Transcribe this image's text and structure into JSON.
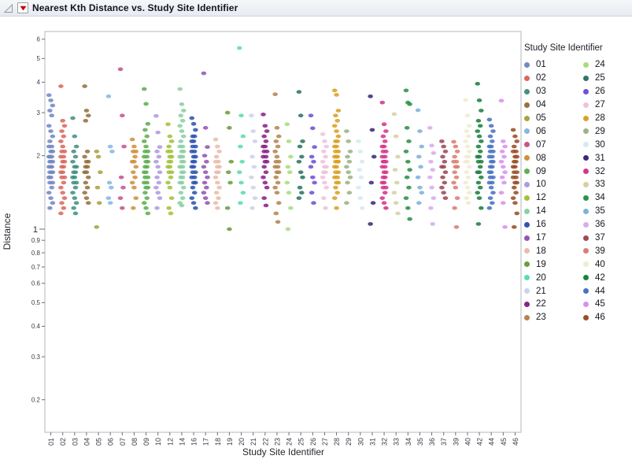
{
  "window": {
    "title": "Nearest Kth Distance vs. Study Site Identifier"
  },
  "icons": {
    "disclosure": "disclosure-triangle",
    "menu": "red-triangle-menu"
  },
  "chart_data": {
    "type": "scatter",
    "title": "Nearest Kth Distance vs. Study Site Identifier",
    "xlabel": "Study Site Identifier",
    "ylabel": "Distance",
    "y_scale": "log",
    "ylim": [
      0.15,
      6.4
    ],
    "grid": false,
    "legend_title": "Study Site Identifier",
    "legend_position": "right",
    "y_ticks": [
      6,
      5,
      4,
      3,
      2,
      1,
      0.9,
      0.8,
      0.7,
      0.6,
      0.5,
      0.4,
      0.3,
      0.2
    ],
    "y_tick_labels": [
      "6",
      "5",
      "4",
      "3",
      "2",
      "1",
      "0.9",
      "0.8",
      "0.7",
      "0.6",
      "0.5",
      "0.4",
      "0.3",
      "0.2"
    ],
    "y_major_tick": "1",
    "categories": [
      "01",
      "02",
      "03",
      "04",
      "05",
      "06",
      "07",
      "08",
      "09",
      "10",
      "12",
      "14",
      "16",
      "17",
      "18",
      "19",
      "20",
      "21",
      "22",
      "23",
      "24",
      "25",
      "26",
      "27",
      "28",
      "29",
      "30",
      "31",
      "32",
      "33",
      "34",
      "35",
      "36",
      "37",
      "39",
      "40",
      "42",
      "44",
      "45",
      "46"
    ],
    "series": [
      {
        "site": "01",
        "color": "#7289C4",
        "values": [
          3.54,
          3.37,
          3.21,
          3.06,
          2.92,
          2.65,
          2.52,
          2.4,
          2.29,
          2.18,
          2.18,
          2.08,
          2.08,
          1.98,
          1.98,
          1.98,
          1.89,
          1.89,
          1.89,
          1.8,
          1.8,
          1.8,
          1.71,
          1.71,
          1.71,
          1.63,
          1.63,
          1.55,
          1.55,
          1.48,
          1.41,
          1.34,
          1.28,
          1.22
        ]
      },
      {
        "site": "02",
        "color": "#D96A5F",
        "values": [
          3.85,
          2.78,
          2.65,
          2.52,
          2.4,
          2.29,
          2.18,
          2.08,
          2.08,
          1.98,
          1.98,
          1.89,
          1.89,
          1.8,
          1.8,
          1.71,
          1.71,
          1.63,
          1.63,
          1.55,
          1.48,
          1.41,
          1.34,
          1.28,
          1.22,
          1.16
        ]
      },
      {
        "site": "03",
        "color": "#43917F",
        "values": [
          2.85,
          2.4,
          2.18,
          2.08,
          1.98,
          1.89,
          1.8,
          1.8,
          1.71,
          1.71,
          1.63,
          1.63,
          1.55,
          1.55,
          1.48,
          1.41,
          1.34,
          1.28,
          1.22,
          1.16
        ]
      },
      {
        "site": "04",
        "color": "#96713F",
        "values": [
          3.85,
          3.06,
          2.92,
          2.78,
          2.08,
          1.98,
          1.89,
          1.89,
          1.8,
          1.8,
          1.71,
          1.71,
          1.63,
          1.55,
          1.48,
          1.41,
          1.34,
          1.28
        ]
      },
      {
        "site": "05",
        "color": "#A8A43F",
        "values": [
          2.08,
          1.98,
          1.71,
          1.48,
          1.28,
          1.02
        ]
      },
      {
        "site": "06",
        "color": "#87B8E0",
        "values": [
          3.5,
          2.18,
          2.08,
          1.55,
          1.48,
          1.34,
          1.28
        ]
      },
      {
        "site": "07",
        "color": "#C4578F",
        "values": [
          4.52,
          2.92,
          2.18,
          1.63,
          1.48,
          1.34,
          1.22
        ]
      },
      {
        "site": "08",
        "color": "#D0913D",
        "values": [
          2.33,
          2.18,
          2.08,
          2.08,
          1.98,
          1.89,
          1.89,
          1.8,
          1.71,
          1.63,
          1.55,
          1.48,
          1.34,
          1.22
        ]
      },
      {
        "site": "09",
        "color": "#60AE52",
        "values": [
          3.75,
          3.26,
          2.7,
          2.55,
          2.4,
          2.29,
          2.18,
          2.08,
          2.08,
          1.98,
          1.98,
          1.89,
          1.89,
          1.8,
          1.8,
          1.71,
          1.71,
          1.63,
          1.63,
          1.55,
          1.55,
          1.48,
          1.48,
          1.41,
          1.34,
          1.28,
          1.22,
          1.16
        ]
      },
      {
        "site": "10",
        "color": "#AD9CDE",
        "values": [
          2.91,
          2.49,
          2.17,
          2.08,
          1.98,
          1.89,
          1.8,
          1.71,
          1.63,
          1.55,
          1.48,
          1.41,
          1.34,
          1.22
        ]
      },
      {
        "site": "12",
        "color": "#A3C13B",
        "values": [
          2.69,
          2.4,
          2.29,
          2.18,
          2.08,
          2.08,
          1.98,
          1.98,
          1.89,
          1.89,
          1.8,
          1.8,
          1.71,
          1.71,
          1.63,
          1.55,
          1.48,
          1.34,
          1.22,
          1.16
        ]
      },
      {
        "site": "14",
        "color": "#8CCFA5",
        "values": [
          3.75,
          3.25,
          3.06,
          2.92,
          2.78,
          2.65,
          2.52,
          2.4,
          2.29,
          2.18,
          2.18,
          2.08,
          2.08,
          1.98,
          1.98,
          1.98,
          1.89,
          1.89,
          1.8,
          1.8,
          1.8,
          1.71,
          1.71,
          1.63,
          1.63,
          1.55,
          1.55,
          1.48,
          1.41,
          1.34,
          1.28,
          1.25
        ]
      },
      {
        "site": "16",
        "color": "#2F55B2",
        "values": [
          2.85,
          2.7,
          2.55,
          2.4,
          2.4,
          2.29,
          2.29,
          2.18,
          2.18,
          2.08,
          2.08,
          1.98,
          1.98,
          1.89,
          1.89,
          1.8,
          1.8,
          1.71,
          1.71,
          1.63,
          1.63,
          1.55,
          1.55,
          1.48,
          1.41,
          1.34,
          1.28,
          1.22
        ]
      },
      {
        "site": "17",
        "color": "#9457B0",
        "values": [
          4.35,
          2.6,
          2.17,
          2.0,
          1.89,
          1.8,
          1.71,
          1.63,
          1.55,
          1.48,
          1.41,
          1.34,
          1.28
        ]
      },
      {
        "site": "18",
        "color": "#EBBCAA",
        "values": [
          2.33,
          2.18,
          2.08,
          1.98,
          1.89,
          1.89,
          1.8,
          1.8,
          1.71,
          1.71,
          1.63,
          1.55,
          1.48,
          1.41,
          1.34,
          1.28,
          1.22
        ]
      },
      {
        "site": "19",
        "color": "#6B9E3E",
        "values": [
          3.0,
          2.6,
          1.89,
          1.71,
          1.55,
          1.22,
          1.0
        ]
      },
      {
        "site": "20",
        "color": "#5BDCAF",
        "values": [
          5.52,
          2.92,
          2.4,
          2.18,
          1.89,
          1.71,
          1.55,
          1.41,
          1.28
        ]
      },
      {
        "site": "21",
        "color": "#CDD1EA",
        "values": [
          2.92,
          2.52,
          2.29,
          1.98,
          1.8,
          1.63,
          1.48,
          1.34,
          1.22
        ]
      },
      {
        "site": "22",
        "color": "#8A2387",
        "values": [
          2.95,
          2.65,
          2.52,
          2.4,
          2.29,
          2.18,
          2.18,
          2.08,
          2.08,
          1.98,
          1.98,
          1.89,
          1.89,
          1.8,
          1.71,
          1.63,
          1.55,
          1.48,
          1.34,
          1.25
        ]
      },
      {
        "site": "23",
        "color": "#B5854F",
        "values": [
          3.57,
          2.6,
          2.4,
          2.29,
          2.18,
          2.08,
          1.98,
          1.89,
          1.89,
          1.8,
          1.8,
          1.71,
          1.71,
          1.63,
          1.55,
          1.48,
          1.41,
          1.28,
          1.16,
          1.07
        ]
      },
      {
        "site": "24",
        "color": "#A8DD7C",
        "values": [
          2.69,
          2.29,
          1.98,
          1.8,
          1.71,
          1.55,
          1.41,
          1.22,
          1.0
        ]
      },
      {
        "site": "25",
        "color": "#2F7467",
        "values": [
          3.65,
          2.92,
          2.29,
          2.18,
          1.98,
          1.89,
          1.71,
          1.63,
          1.48,
          1.41,
          1.34
        ]
      },
      {
        "site": "26",
        "color": "#6F51D6",
        "values": [
          2.92,
          2.59,
          2.17,
          1.98,
          1.89,
          1.8,
          1.63,
          1.55,
          1.41,
          1.28
        ]
      },
      {
        "site": "27",
        "color": "#EFC2DC",
        "values": [
          2.45,
          2.29,
          2.18,
          2.08,
          1.98,
          1.89,
          1.8,
          1.8,
          1.71,
          1.71,
          1.63,
          1.55,
          1.48,
          1.34,
          1.22
        ]
      },
      {
        "site": "28",
        "color": "#D9A126",
        "values": [
          3.7,
          3.55,
          3.06,
          2.92,
          2.78,
          2.65,
          2.52,
          2.4,
          2.29,
          2.29,
          2.18,
          2.18,
          2.08,
          2.08,
          1.98,
          1.98,
          1.98,
          1.89,
          1.89,
          1.89,
          1.8,
          1.8,
          1.71,
          1.71,
          1.63,
          1.63,
          1.55,
          1.55,
          1.48,
          1.41,
          1.34,
          1.22
        ]
      },
      {
        "site": "29",
        "color": "#9BB385",
        "values": [
          2.52,
          2.29,
          2.08,
          1.98,
          1.89,
          1.8,
          1.71,
          1.63,
          1.55,
          1.41,
          1.28
        ]
      },
      {
        "site": "30",
        "color": "#D2EAF3",
        "values": [
          2.29,
          2.08,
          1.89,
          1.75,
          1.63,
          1.48,
          1.34,
          1.22
        ]
      },
      {
        "site": "31",
        "color": "#3D2A7D",
        "values": [
          3.5,
          2.55,
          1.98,
          1.55,
          1.28,
          1.05
        ]
      },
      {
        "site": "32",
        "color": "#D63787",
        "values": [
          3.3,
          2.69,
          2.52,
          2.4,
          2.29,
          2.18,
          2.18,
          2.08,
          2.08,
          1.98,
          1.98,
          1.89,
          1.89,
          1.89,
          1.8,
          1.8,
          1.71,
          1.71,
          1.63,
          1.63,
          1.55,
          1.55,
          1.48,
          1.48,
          1.41,
          1.34,
          1.28,
          1.22
        ]
      },
      {
        "site": "33",
        "color": "#D6D0A2",
        "values": [
          2.96,
          2.4,
          1.98,
          1.75,
          1.55,
          1.41,
          1.28,
          1.16
        ]
      },
      {
        "site": "34",
        "color": "#2E9147",
        "values": [
          3.7,
          3.3,
          3.25,
          2.6,
          2.29,
          2.08,
          1.89,
          1.75,
          1.63,
          1.48,
          1.34,
          1.22,
          1.1
        ]
      },
      {
        "site": "35",
        "color": "#7FB2D9",
        "values": [
          3.07,
          2.52,
          2.18,
          1.98,
          1.8,
          1.63,
          1.48,
          1.41,
          1.28
        ]
      },
      {
        "site": "36",
        "color": "#D8ACEE",
        "values": [
          2.6,
          2.2,
          2.05,
          1.89,
          1.75,
          1.63,
          1.48,
          1.34,
          1.22,
          1.05
        ]
      },
      {
        "site": "37",
        "color": "#9C4A55",
        "values": [
          2.29,
          2.18,
          2.08,
          1.98,
          1.89,
          1.8,
          1.8,
          1.71,
          1.63,
          1.55,
          1.48,
          1.41,
          1.34
        ]
      },
      {
        "site": "39",
        "color": "#DB7E72",
        "values": [
          2.28,
          2.18,
          2.08,
          1.98,
          1.89,
          1.89,
          1.8,
          1.8,
          1.71,
          1.63,
          1.55,
          1.48,
          1.34,
          1.22,
          1.02
        ]
      },
      {
        "site": "40",
        "color": "#EFECCF",
        "values": [
          3.38,
          2.92,
          2.65,
          2.52,
          2.4,
          2.29,
          2.18,
          2.08,
          1.98,
          1.98,
          1.89,
          1.89,
          1.8,
          1.71,
          1.63,
          1.55,
          1.48,
          1.41,
          1.34,
          1.28
        ]
      },
      {
        "site": "42",
        "color": "#1F8040",
        "values": [
          3.94,
          3.37,
          3.06,
          2.78,
          2.65,
          2.52,
          2.4,
          2.29,
          2.18,
          2.08,
          1.98,
          1.98,
          1.89,
          1.89,
          1.8,
          1.71,
          1.71,
          1.63,
          1.55,
          1.48,
          1.41,
          1.34,
          1.22,
          1.05
        ]
      },
      {
        "site": "44",
        "color": "#4A72C4",
        "values": [
          2.81,
          2.65,
          2.52,
          2.4,
          2.29,
          2.18,
          2.18,
          2.08,
          2.08,
          1.98,
          1.98,
          1.89,
          1.89,
          1.8,
          1.8,
          1.71,
          1.71,
          1.63,
          1.63,
          1.55,
          1.55,
          1.48,
          1.41,
          1.34,
          1.28,
          1.22
        ]
      },
      {
        "site": "45",
        "color": "#D98FEF",
        "values": [
          3.36,
          2.29,
          2.18,
          2.08,
          1.98,
          1.89,
          1.8,
          1.71,
          1.63,
          1.55,
          1.41,
          1.28,
          1.02
        ]
      },
      {
        "site": "46",
        "color": "#9A4F27",
        "values": [
          2.55,
          2.4,
          2.29,
          2.18,
          2.08,
          2.08,
          1.98,
          1.98,
          1.89,
          1.89,
          1.8,
          1.8,
          1.71,
          1.71,
          1.63,
          1.63,
          1.55,
          1.55,
          1.48,
          1.41,
          1.34,
          1.28,
          1.16,
          1.02
        ]
      }
    ]
  }
}
